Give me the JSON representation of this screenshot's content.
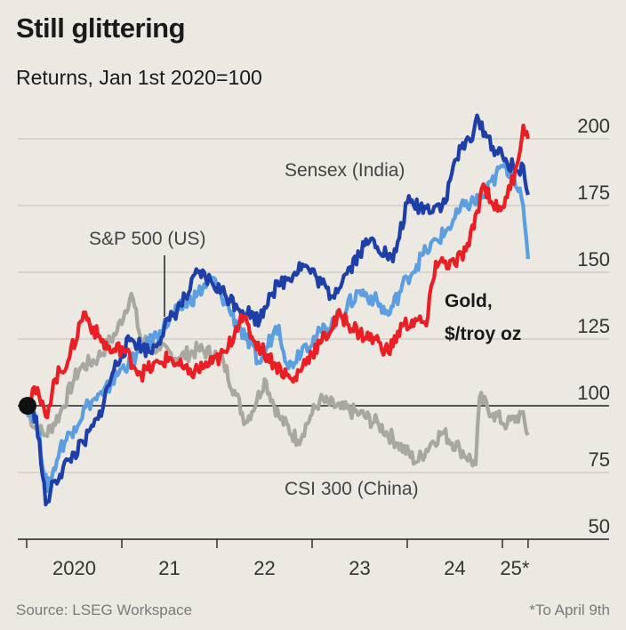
{
  "chart_data": {
    "type": "line",
    "title": "Still glittering",
    "subtitle": "Returns, Jan 1st 2020=100",
    "ylim": [
      50,
      200
    ],
    "yticks": [
      50,
      75,
      100,
      125,
      150,
      175,
      200
    ],
    "ytick_labels": [
      "50",
      "75",
      "100",
      "125",
      "150",
      "175",
      "200"
    ],
    "baseline": 100,
    "xlim": [
      2020.0,
      2025.27
    ],
    "xticks": [
      2020,
      2021,
      2022,
      2023,
      2024,
      2025,
      2025.27
    ],
    "xtick_labels": [
      {
        "label": "2020",
        "at": 2020.5
      },
      {
        "label": "21",
        "at": 2021.5
      },
      {
        "label": "22",
        "at": 2022.5
      },
      {
        "label": "23",
        "at": 2023.5
      },
      {
        "label": "24",
        "at": 2024.5
      },
      {
        "label": "25*",
        "at": 2025.13
      }
    ],
    "grid": true,
    "series": [
      {
        "name": "CSI 300 (China)",
        "color": "#a9a8a0",
        "points": [
          [
            2020.0,
            100
          ],
          [
            2020.08,
            92
          ],
          [
            2020.2,
            89
          ],
          [
            2020.35,
            97
          ],
          [
            2020.5,
            110
          ],
          [
            2020.56,
            114
          ],
          [
            2020.75,
            118
          ],
          [
            2020.95,
            128
          ],
          [
            2021.1,
            142
          ],
          [
            2021.2,
            125
          ],
          [
            2021.4,
            121
          ],
          [
            2021.6,
            118
          ],
          [
            2021.8,
            121
          ],
          [
            2022.0,
            119
          ],
          [
            2022.07,
            116
          ],
          [
            2022.2,
            104
          ],
          [
            2022.3,
            94
          ],
          [
            2022.42,
            102
          ],
          [
            2022.5,
            110
          ],
          [
            2022.65,
            96
          ],
          [
            2022.85,
            87
          ],
          [
            2023.0,
            97
          ],
          [
            2023.08,
            102
          ],
          [
            2023.3,
            99
          ],
          [
            2023.5,
            97
          ],
          [
            2023.7,
            93
          ],
          [
            2023.9,
            86
          ],
          [
            2024.1,
            79
          ],
          [
            2024.25,
            86
          ],
          [
            2024.37,
            90
          ],
          [
            2024.55,
            84
          ],
          [
            2024.72,
            78
          ],
          [
            2024.76,
            103
          ],
          [
            2024.9,
            97
          ],
          [
            2025.05,
            93
          ],
          [
            2025.2,
            97
          ],
          [
            2025.27,
            89
          ]
        ]
      },
      {
        "name": "S&P 500 (US)",
        "color": "#5b9fe0",
        "points": [
          [
            2020.0,
            100
          ],
          [
            2020.1,
            95
          ],
          [
            2020.22,
            68
          ],
          [
            2020.35,
            84
          ],
          [
            2020.5,
            92
          ],
          [
            2020.65,
            101
          ],
          [
            2020.8,
            104
          ],
          [
            2021.0,
            114
          ],
          [
            2021.2,
            120
          ],
          [
            2021.4,
            128
          ],
          [
            2021.6,
            136
          ],
          [
            2021.8,
            142
          ],
          [
            2021.95,
            148
          ],
          [
            2022.1,
            138
          ],
          [
            2022.3,
            125
          ],
          [
            2022.45,
            116
          ],
          [
            2022.6,
            128
          ],
          [
            2022.65,
            130
          ],
          [
            2022.75,
            114
          ],
          [
            2022.9,
            122
          ],
          [
            2023.05,
            126
          ],
          [
            2023.25,
            132
          ],
          [
            2023.5,
            143
          ],
          [
            2023.65,
            140
          ],
          [
            2023.8,
            134
          ],
          [
            2024.0,
            148
          ],
          [
            2024.2,
            158
          ],
          [
            2024.4,
            165
          ],
          [
            2024.6,
            175
          ],
          [
            2024.8,
            178
          ],
          [
            2025.0,
            190
          ],
          [
            2025.12,
            187
          ],
          [
            2025.2,
            178
          ],
          [
            2025.27,
            155
          ]
        ]
      },
      {
        "name": "Sensex (India)",
        "color": "#1f3fa8",
        "points": [
          [
            2020.0,
            100
          ],
          [
            2020.1,
            96
          ],
          [
            2020.2,
            63
          ],
          [
            2020.3,
            72
          ],
          [
            2020.45,
            80
          ],
          [
            2020.6,
            86
          ],
          [
            2020.75,
            95
          ],
          [
            2020.9,
            112
          ],
          [
            2021.0,
            120
          ],
          [
            2021.1,
            125
          ],
          [
            2021.3,
            120
          ],
          [
            2021.5,
            132
          ],
          [
            2021.7,
            142
          ],
          [
            2021.8,
            150
          ],
          [
            2021.95,
            146
          ],
          [
            2022.2,
            138
          ],
          [
            2022.45,
            132
          ],
          [
            2022.55,
            142
          ],
          [
            2022.65,
            145
          ],
          [
            2022.9,
            153
          ],
          [
            2023.05,
            148
          ],
          [
            2023.2,
            141
          ],
          [
            2023.4,
            152
          ],
          [
            2023.55,
            160
          ],
          [
            2023.65,
            162
          ],
          [
            2023.85,
            154
          ],
          [
            2024.0,
            176
          ],
          [
            2024.2,
            174
          ],
          [
            2024.4,
            176
          ],
          [
            2024.5,
            192
          ],
          [
            2024.65,
            200
          ],
          [
            2024.75,
            207
          ],
          [
            2024.9,
            197
          ],
          [
            2025.05,
            191
          ],
          [
            2025.15,
            188
          ],
          [
            2025.22,
            190
          ],
          [
            2025.27,
            179
          ]
        ]
      },
      {
        "name": "Gold, $/troy oz",
        "color": "#ea1f25",
        "points": [
          [
            2020.0,
            100
          ],
          [
            2020.08,
            107
          ],
          [
            2020.2,
            96
          ],
          [
            2020.3,
            110
          ],
          [
            2020.45,
            118
          ],
          [
            2020.6,
            135
          ],
          [
            2020.75,
            126
          ],
          [
            2020.9,
            120
          ],
          [
            2021.0,
            122
          ],
          [
            2021.2,
            112
          ],
          [
            2021.4,
            116
          ],
          [
            2021.5,
            118
          ],
          [
            2021.7,
            112
          ],
          [
            2021.95,
            116
          ],
          [
            2022.1,
            120
          ],
          [
            2022.25,
            134
          ],
          [
            2022.4,
            124
          ],
          [
            2022.6,
            116
          ],
          [
            2022.8,
            109
          ],
          [
            2022.95,
            118
          ],
          [
            2023.1,
            124
          ],
          [
            2023.3,
            134
          ],
          [
            2023.5,
            127
          ],
          [
            2023.7,
            124
          ],
          [
            2023.8,
            120
          ],
          [
            2023.95,
            130
          ],
          [
            2024.1,
            132
          ],
          [
            2024.2,
            130
          ],
          [
            2024.3,
            154
          ],
          [
            2024.5,
            153
          ],
          [
            2024.65,
            160
          ],
          [
            2024.8,
            183
          ],
          [
            2024.95,
            173
          ],
          [
            2025.05,
            178
          ],
          [
            2025.15,
            190
          ],
          [
            2025.22,
            205
          ],
          [
            2025.27,
            200
          ]
        ]
      }
    ],
    "annotations": [
      "Sensex (India)",
      "S&P 500 (US)",
      "Gold,",
      "$/troy oz",
      "CSI 300 (China)"
    ]
  },
  "footer": {
    "source": "Source: LSEG Workspace",
    "note": "*To April 9th"
  }
}
